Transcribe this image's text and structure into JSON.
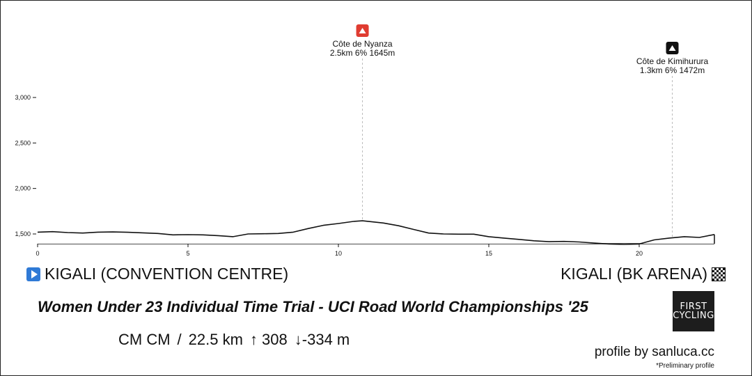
{
  "chart_data": {
    "type": "area",
    "xlabel": "",
    "ylabel": "",
    "xlim": [
      0,
      22.5
    ],
    "ylim": [
      1400,
      3150
    ],
    "x_ticks": [
      0,
      5,
      10,
      15,
      20
    ],
    "y_ticks": [
      1500,
      2000,
      2500,
      3000
    ],
    "y_tick_labels": [
      "1,500",
      "2,000",
      "2,500",
      "3,000"
    ],
    "x_tick_labels": [
      "0",
      "5",
      "10",
      "15",
      "20"
    ],
    "grid": false,
    "series": [
      {
        "x": [
          0,
          0.5,
          1,
          1.5,
          2,
          2.5,
          3,
          3.5,
          4,
          4.5,
          5,
          5.5,
          6,
          6.5,
          7,
          7.5,
          8,
          8.5,
          9,
          9.5,
          10,
          10.5,
          10.8,
          11.5,
          12,
          12.5,
          13,
          13.5,
          14,
          14.5,
          15,
          15.5,
          16,
          16.5,
          17,
          17.5,
          18,
          18.5,
          19,
          19.5,
          20,
          20.5,
          21,
          21.5,
          22,
          22.5
        ],
        "y": [
          1520,
          1525,
          1515,
          1510,
          1520,
          1522,
          1518,
          1512,
          1505,
          1490,
          1492,
          1490,
          1482,
          1470,
          1500,
          1502,
          1505,
          1520,
          1560,
          1595,
          1615,
          1638,
          1645,
          1620,
          1590,
          1550,
          1510,
          1500,
          1498,
          1498,
          1470,
          1455,
          1440,
          1425,
          1415,
          1418,
          1412,
          1400,
          1390,
          1385,
          1390,
          1435,
          1455,
          1470,
          1462,
          1494
        ]
      }
    ],
    "climbs": [
      {
        "name": "Côte de Nyanza",
        "details": "2.5km 6% 1645m",
        "km": 10.8,
        "color": "#e03c31"
      },
      {
        "name": "Côte de Kimihurura",
        "details": "1.3km 6% 1472m",
        "km": 21.1,
        "color": "#111111"
      }
    ]
  },
  "start": {
    "label": "KIGALI (CONVENTION CENTRE)",
    "icon": "play-icon"
  },
  "finish": {
    "label": "KIGALI (BK ARENA)",
    "icon": "checkered-flag-icon"
  },
  "race_title": "Women Under 23 Individual Time Trial - UCI Road World Championships '25",
  "stats": {
    "type": "CM CM",
    "separator": "/",
    "distance": "22.5 km",
    "ascent": "↑ 308",
    "descent": "↓-334 m"
  },
  "logo": {
    "line1": "FIRST",
    "line2": "CYCLING"
  },
  "credit": "profile by sanluca.cc",
  "note": "*Preliminary profile"
}
